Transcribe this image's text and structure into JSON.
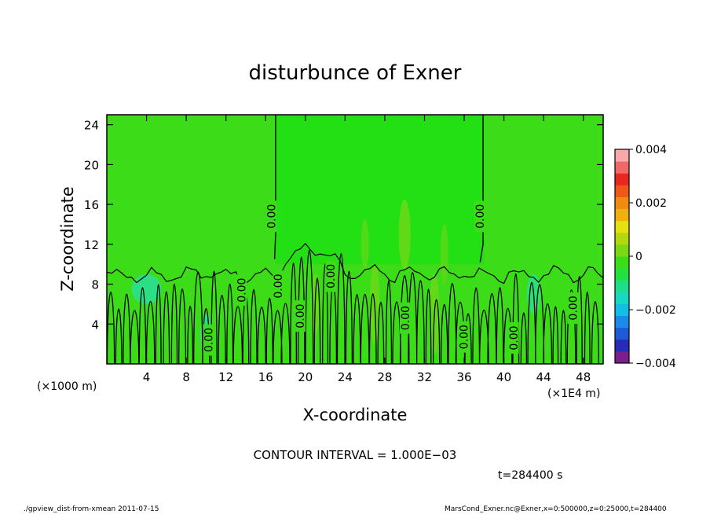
{
  "chart_data": {
    "type": "heatmap",
    "title": "disturbunce of Exner",
    "xlabel": "X-coordinate",
    "ylabel": "Z-coordinate",
    "x_unit_left": "(×1000 m)",
    "x_unit_right": "(×1E4 m)",
    "xlim": [
      0,
      50
    ],
    "ylim": [
      0,
      25
    ],
    "x_ticks": [
      4,
      8,
      12,
      16,
      20,
      24,
      28,
      32,
      36,
      40,
      44,
      48
    ],
    "y_ticks": [
      4,
      8,
      12,
      16,
      20,
      24
    ],
    "colorbar": {
      "min": -0.004,
      "max": 0.004,
      "tick_values": [
        0.004,
        0.002,
        0,
        -0.002,
        -0.004
      ],
      "tick_labels": [
        "0.004",
        "0.002",
        "0",
        "−0.002",
        "−0.004"
      ],
      "colors": [
        "#7a1f8c",
        "#2a2ab8",
        "#1e5ad8",
        "#1e8ae8",
        "#14bce8",
        "#18d8c0",
        "#1ede86",
        "#24e040",
        "#3cdc18",
        "#7ad814",
        "#b4d810",
        "#e6e010",
        "#f0b010",
        "#f08a10",
        "#f05818",
        "#e82820",
        "#f06868",
        "#f8a8a8"
      ]
    },
    "field": {
      "background_color": "#3cdc18",
      "upper_band_color": "#22e014",
      "upper_band_x": [
        17,
        38
      ],
      "lower_value_note": "0.00"
    },
    "contour_labels": [
      {
        "text": "0.00",
        "x": 16.8,
        "y": 14.8
      },
      {
        "text": "0.00",
        "x": 37.8,
        "y": 14.8
      },
      {
        "text": "0.00",
        "x": 13.8,
        "y": 7.4
      },
      {
        "text": "0.00",
        "x": 17.5,
        "y": 7.8
      },
      {
        "text": "0.00",
        "x": 22.8,
        "y": 8.8
      },
      {
        "text": "0.00",
        "x": 19.7,
        "y": 4.8
      },
      {
        "text": "0.00",
        "x": 30.3,
        "y": 4.6
      },
      {
        "text": "0.00",
        "x": 36.2,
        "y": 2.7
      },
      {
        "text": "0.00",
        "x": 10.5,
        "y": 2.4
      },
      {
        "text": "0.00",
        "x": 41.2,
        "y": 2.6
      },
      {
        "text": "0.00",
        "x": 47.2,
        "y": 5.6
      }
    ]
  },
  "annotations": {
    "contour_interval": "CONTOUR INTERVAL = 1.000E−03",
    "time": "t=284400 s",
    "footer_left": "./gpview_dist-from-xmean  2011-07-15",
    "footer_right": "MarsCond_Exner.nc@Exner,x=0:500000,z=0:25000,t=284400"
  }
}
